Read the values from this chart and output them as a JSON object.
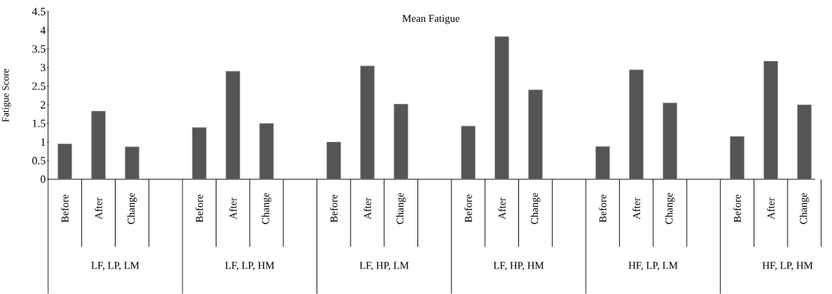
{
  "chart_data": {
    "type": "bar",
    "title": "Mean Fatigue",
    "ylabel": "Fatigue  Score",
    "categories": [
      "Before",
      "After",
      "Change",
      null,
      "Before",
      "After",
      "Change",
      null,
      "Before",
      "After",
      "Change",
      null,
      "Before",
      "After",
      "Change",
      null,
      "Before",
      "After",
      "Change",
      null,
      "Before",
      "After",
      "Change"
    ],
    "values": [
      0.95,
      1.83,
      0.87,
      null,
      1.39,
      2.9,
      1.5,
      null,
      1.0,
      3.04,
      2.02,
      null,
      1.43,
      3.83,
      2.4,
      null,
      0.88,
      2.94,
      2.05,
      null,
      1.15,
      3.17,
      2.0
    ],
    "color": "#545557",
    "ylim": [
      0,
      4.5
    ],
    "yticks": [
      0,
      0.5,
      1,
      1.5,
      2,
      2.5,
      3,
      3.5,
      4,
      4.5
    ],
    "annotations": [
      "LF, LP, LM",
      "LF, LP, HM",
      "LF, HP, LM",
      "LF, HP, HM",
      "HF, LP, LM",
      "HF, LP, HM"
    ]
  }
}
